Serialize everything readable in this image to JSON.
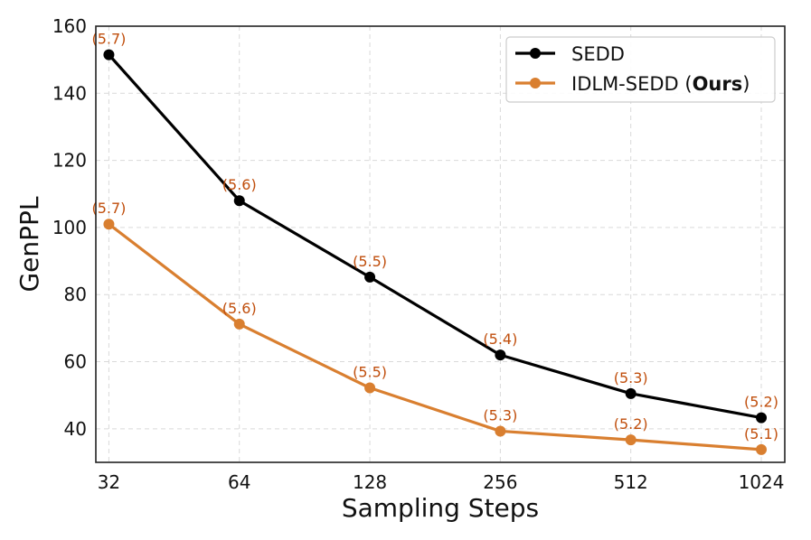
{
  "chart_data": {
    "type": "line",
    "title": "",
    "xlabel": "Sampling Steps",
    "ylabel": "GenPPL",
    "categories": [
      "32",
      "64",
      "128",
      "256",
      "512",
      "1024"
    ],
    "x_log2": [
      5,
      6,
      7,
      8,
      9,
      10
    ],
    "xlim_log2": [
      4.9,
      10.18
    ],
    "ylim": [
      30,
      160
    ],
    "yticks": [
      40,
      60,
      80,
      100,
      120,
      140,
      160
    ],
    "grid": true,
    "legend_position": "top-right",
    "series": [
      {
        "name": "SEDD",
        "color": "#000000",
        "values": [
          151.5,
          108,
          85.2,
          62,
          50.5,
          43.3
        ],
        "annotations": [
          "(5.7)",
          "(5.6)",
          "(5.5)",
          "(5.4)",
          "(5.3)",
          "(5.2)"
        ]
      },
      {
        "name": "IDLM-SEDD",
        "name_bold_suffix": "Ours",
        "color": "#d97f30",
        "values": [
          101,
          71.2,
          52.2,
          39.3,
          36.7,
          33.8
        ],
        "annotations": [
          "(5.7)",
          "(5.6)",
          "(5.5)",
          "(5.3)",
          "(5.2)",
          "(5.1)"
        ]
      }
    ],
    "annotation_color": "#c04e0c"
  }
}
